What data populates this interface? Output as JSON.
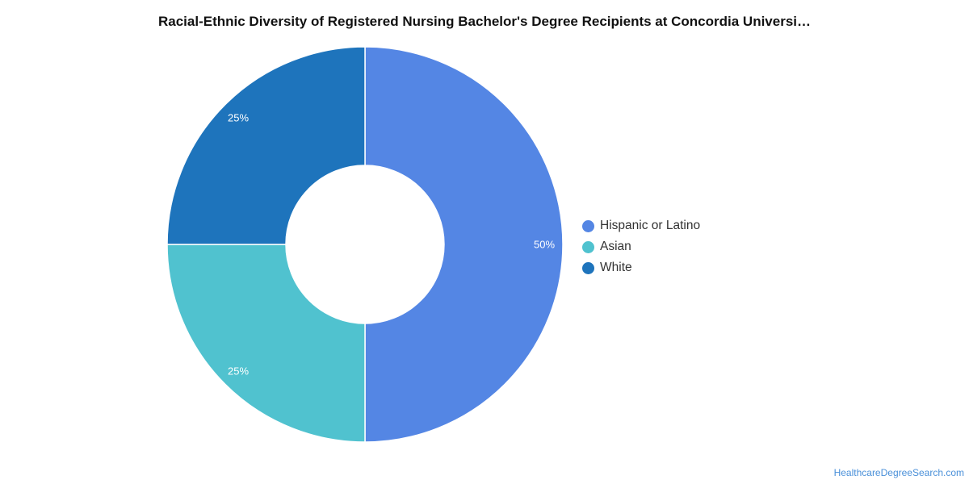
{
  "chart_data": {
    "type": "pie",
    "title": "Racial-Ethnic Diversity of Registered Nursing Bachelor's Degree Recipients at Concordia Universi…",
    "donut": true,
    "legend_position": "right",
    "slices": [
      {
        "name": "Hispanic or Latino",
        "value": 50,
        "label": "50%",
        "color": "#5486e4"
      },
      {
        "name": "Asian",
        "value": 25,
        "label": "25%",
        "color": "#50c2cf"
      },
      {
        "name": "White",
        "value": 25,
        "label": "25%",
        "color": "#1e74bc"
      }
    ]
  },
  "source": "HealthcareDegreeSearch.com"
}
